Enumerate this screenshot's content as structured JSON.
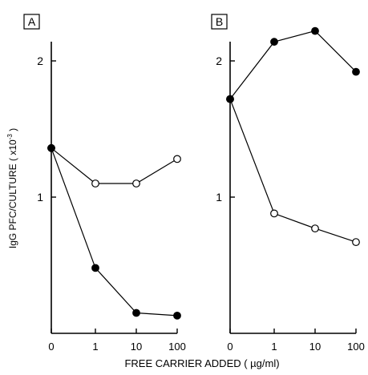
{
  "chart_data": [
    {
      "type": "line",
      "panel_label": "A",
      "ylabel": "IgG PFC/CULTURE ( x10^-3 )",
      "ylabel_parts": [
        "IgG PFC/CULTURE ( x10",
        "-3",
        " )"
      ],
      "xlabel": "FREE CARRIER ADDED ( µg/ml)",
      "categories": [
        "0",
        "1",
        "10",
        "100"
      ],
      "y_ticks": [
        "1",
        "2"
      ],
      "ylim": [
        0,
        2.2
      ],
      "grid": false,
      "series": [
        {
          "marker": "open-circle",
          "values": [
            1.36,
            1.1,
            1.1,
            1.28
          ]
        },
        {
          "marker": "filled-circle",
          "values": [
            1.36,
            0.48,
            0.15,
            0.13
          ]
        }
      ]
    },
    {
      "type": "line",
      "panel_label": "B",
      "categories": [
        "0",
        "1",
        "10",
        "100"
      ],
      "y_ticks": [
        "1",
        "2"
      ],
      "ylim": [
        0,
        2.2
      ],
      "grid": false,
      "series": [
        {
          "marker": "open-circle",
          "values": [
            1.72,
            0.88,
            0.77,
            0.67
          ]
        },
        {
          "marker": "filled-circle",
          "values": [
            1.72,
            2.14,
            2.22,
            1.92
          ]
        }
      ]
    }
  ]
}
